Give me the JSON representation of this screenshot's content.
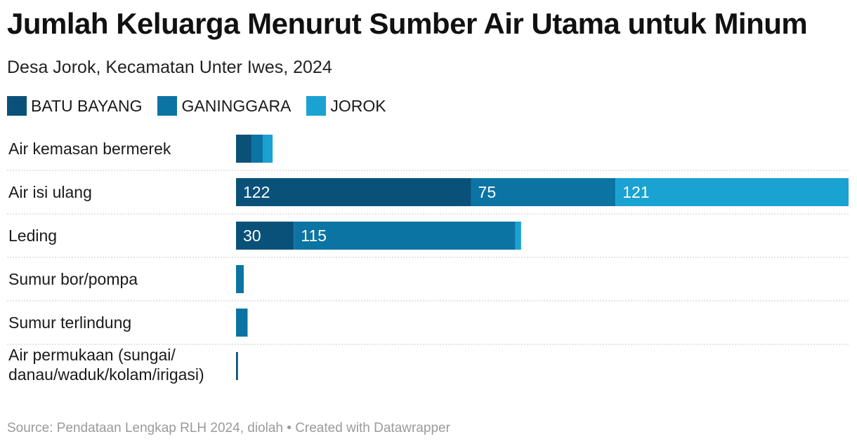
{
  "title": "Jumlah Keluarga Menurut Sumber Air Utama untuk Minum",
  "subtitle": "Desa Jorok, Kecamatan Unter Iwes, 2024",
  "footer": {
    "source": "Source: Pendataan Lengkap RLH 2024, diolah",
    "separator": " • ",
    "credit": "Created with Datawrapper"
  },
  "legend": [
    {
      "label": "BATU BAYANG",
      "color": "#0a5179"
    },
    {
      "label": "GANINGGARA",
      "color": "#0c74a3"
    },
    {
      "label": "JOROK",
      "color": "#1aa2d2"
    }
  ],
  "chart_data": {
    "type": "bar",
    "orientation": "horizontal",
    "stacked": true,
    "title": "Jumlah Keluarga Menurut Sumber Air Utama untuk Minum",
    "subtitle": "Desa Jorok, Kecamatan Unter Iwes, 2024",
    "xlim": [
      0,
      318
    ],
    "categories": [
      [
        "Air kemasan bermerek"
      ],
      [
        "Air isi ulang"
      ],
      [
        "Leding"
      ],
      [
        "Sumur bor/pompa"
      ],
      [
        "Sumur terlindung"
      ],
      [
        "Air permukaan (sungai/",
        "danau/waduk/kolam/irigasi)"
      ]
    ],
    "series": [
      {
        "name": "BATU BAYANG",
        "color": "#0a5179",
        "values": [
          8,
          122,
          30,
          0,
          0,
          1
        ],
        "labels": [
          "",
          "122",
          "30",
          "",
          "",
          ""
        ]
      },
      {
        "name": "GANINGGARA",
        "color": "#0c74a3",
        "values": [
          6,
          75,
          115,
          4,
          6,
          0
        ],
        "labels": [
          "",
          "75",
          "115",
          "",
          "",
          ""
        ]
      },
      {
        "name": "JOROK",
        "color": "#1aa2d2",
        "values": [
          5,
          121,
          3,
          0,
          0,
          0
        ],
        "labels": [
          "",
          "121",
          "",
          "",
          "",
          ""
        ]
      }
    ]
  }
}
